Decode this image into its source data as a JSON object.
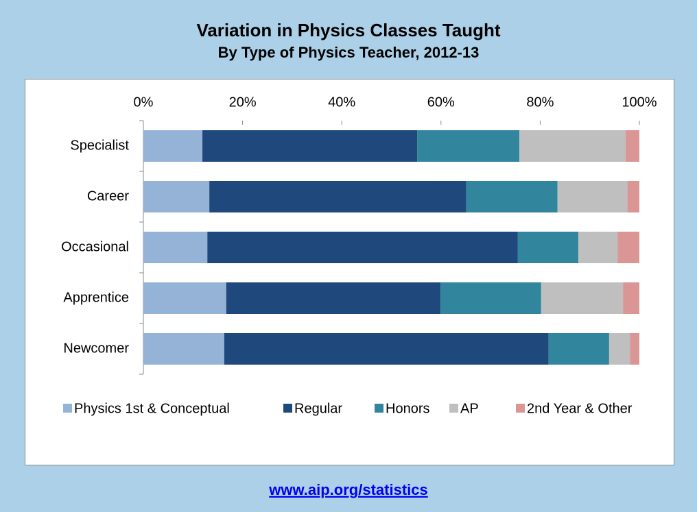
{
  "chart_data": {
    "type": "stacked_barh",
    "title": "Variation in Physics Classes Taught",
    "subtitle": "By Type of Physics Teacher, 2012-13",
    "categories": [
      "Specialist",
      "Career",
      "Occasional",
      "Apprentice",
      "Newcomer"
    ],
    "series": [
      {
        "name": "Physics 1st & Conceptual",
        "color": "#95b3d7",
        "values": [
          11.9,
          13.3,
          12.9,
          16.7,
          16.3
        ]
      },
      {
        "name": "Regular",
        "color": "#1f497d",
        "values": [
          43.3,
          51.8,
          62.6,
          43.2,
          65.4
        ]
      },
      {
        "name": "Honors",
        "color": "#31859c",
        "values": [
          20.6,
          18.4,
          12.2,
          20.3,
          12.2
        ]
      },
      {
        "name": "AP",
        "color": "#bfbfbf",
        "values": [
          21.4,
          14.1,
          7.9,
          16.5,
          4.2
        ]
      },
      {
        "name": "2nd Year & Other",
        "color": "#d99694",
        "values": [
          2.8,
          2.4,
          4.4,
          3.3,
          1.9
        ]
      }
    ],
    "xlim": [
      0,
      100
    ],
    "xticks": [
      {
        "value": 0,
        "label": "0%"
      },
      {
        "value": 20,
        "label": "20%"
      },
      {
        "value": 40,
        "label": "40%"
      },
      {
        "value": 60,
        "label": "60%"
      },
      {
        "value": 80,
        "label": "80%"
      },
      {
        "value": 100,
        "label": "100%"
      }
    ],
    "legend": "bottom"
  },
  "link": "www.aip.org/statistics"
}
